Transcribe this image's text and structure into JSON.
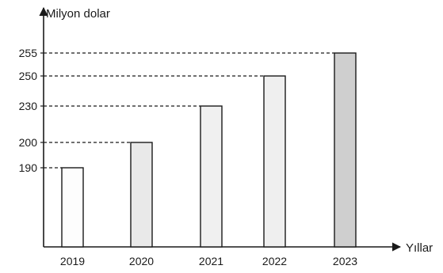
{
  "chart_data": {
    "type": "bar",
    "ylabel": "Milyon dolar",
    "xlabel": "Yıllar",
    "categories": [
      "2019",
      "2020",
      "2021",
      "2022",
      "2023"
    ],
    "values": [
      190,
      200,
      230,
      250,
      255
    ],
    "y_ticks": [
      "190",
      "200",
      "230",
      "250",
      "255"
    ],
    "y_axis_break": true,
    "dashed_guides": true,
    "grid": false,
    "bar_fills": [
      "#fdfdfd",
      "#e9e9e9",
      "#f0f0f0",
      "#efefef",
      "#cfcfcf"
    ]
  }
}
